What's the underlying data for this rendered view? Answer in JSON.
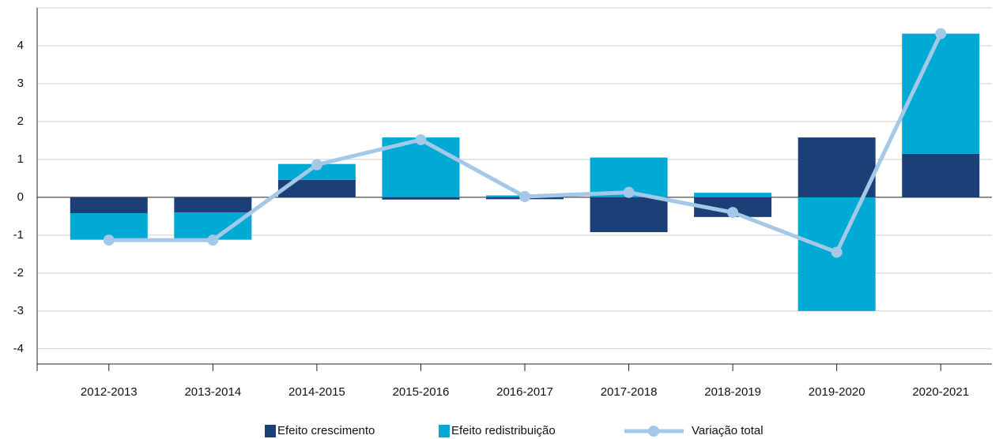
{
  "chart_data": {
    "type": "bar",
    "categories": [
      "2012-2013",
      "2013-2014",
      "2014-2015",
      "2015-2016",
      "2016-2017",
      "2017-2018",
      "2018-2019",
      "2019-2020",
      "2020-2021"
    ],
    "series": [
      {
        "name": "Efeito crescimento",
        "color": "#1c3f77",
        "values": [
          -0.42,
          -0.4,
          0.46,
          -0.06,
          -0.05,
          -0.92,
          -0.52,
          1.58,
          1.15
        ]
      },
      {
        "name": "Efeito redistribuição",
        "color": "#00aad4",
        "values": [
          -0.7,
          -0.72,
          0.42,
          1.58,
          0.05,
          1.05,
          0.12,
          -3.0,
          3.17
        ]
      },
      {
        "name": "Variação total",
        "color": "#a3c8e8",
        "type": "line",
        "values": [
          -1.13,
          -1.13,
          0.86,
          1.52,
          0.02,
          0.13,
          -0.4,
          -1.45,
          4.32
        ]
      }
    ],
    "ylim": [
      -4.4,
      5
    ],
    "yticks": [
      -4,
      -3,
      -2,
      -1,
      0,
      1,
      2,
      3,
      4
    ],
    "grid": true
  }
}
